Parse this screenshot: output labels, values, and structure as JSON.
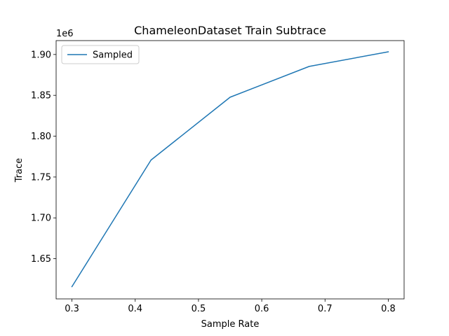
{
  "chart_data": {
    "type": "line",
    "title": "ChameleonDataset Train Subtrace",
    "xlabel": "Sample Rate",
    "ylabel": "Trace",
    "y_offset_label": "1e6",
    "xlim": [
      0.275,
      0.825
    ],
    "ylim": [
      1.6008,
      1.917
    ],
    "x_ticks": [
      "0.3",
      "0.4",
      "0.5",
      "0.6",
      "0.7",
      "0.8"
    ],
    "y_ticks": [
      "1.65",
      "1.70",
      "1.75",
      "1.80",
      "1.85",
      "1.90"
    ],
    "grid": false,
    "legend_position": "upper-left",
    "series": [
      {
        "name": "Sampled",
        "color": "#1f77b4",
        "x": [
          0.3,
          0.425,
          0.55,
          0.675,
          0.8
        ],
        "y": [
          1.6158,
          1.7708,
          1.8477,
          1.8854,
          1.9033
        ]
      }
    ]
  }
}
